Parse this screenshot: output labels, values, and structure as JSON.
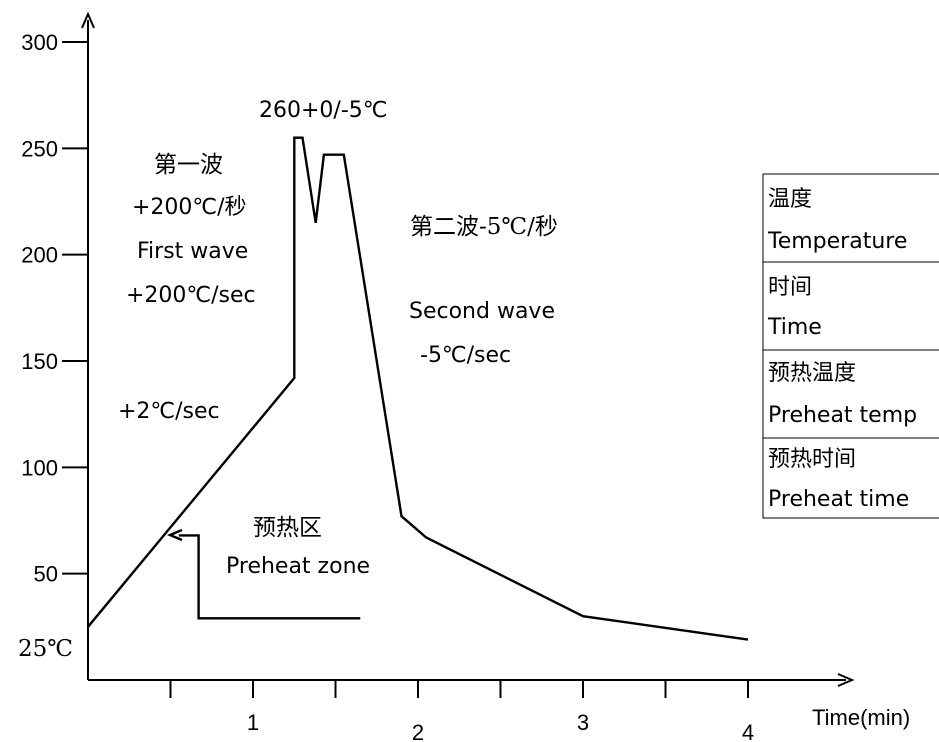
{
  "chart_data": {
    "type": "line",
    "xlabel": "Time(min)",
    "x_ticks": [
      {
        "value": 1,
        "label": "1"
      },
      {
        "value": 2,
        "label": "2"
      },
      {
        "value": 3,
        "label": "3"
      },
      {
        "value": 4,
        "label": "4"
      }
    ],
    "x_minor_ticks": [
      0.5,
      1.5,
      2.5,
      3.5
    ],
    "y_ticks": [
      {
        "value": 300,
        "label": "300"
      },
      {
        "value": 250,
        "label": "250"
      },
      {
        "value": 200,
        "label": "200"
      },
      {
        "value": 150,
        "label": "150"
      },
      {
        "value": 100,
        "label": "100"
      },
      {
        "value": 50,
        "label": "50"
      }
    ],
    "y_start_label": "25℃",
    "xlim": [
      0,
      4.6
    ],
    "ylim": [
      0,
      305
    ],
    "series": [
      {
        "points": [
          [
            0,
            25
          ],
          [
            1.25,
            142
          ],
          [
            1.25,
            255
          ],
          [
            1.3,
            255
          ],
          [
            1.38,
            215
          ],
          [
            1.43,
            247
          ],
          [
            1.55,
            247
          ],
          [
            1.9,
            77
          ],
          [
            2.05,
            67
          ],
          [
            3,
            30
          ],
          [
            4,
            19
          ]
        ]
      }
    ],
    "preheat_bracket": {
      "points": [
        [
          0.55,
          68
        ],
        [
          0.67,
          68
        ],
        [
          0.67,
          29
        ],
        [
          1.65,
          29
        ]
      ]
    },
    "annotations": {
      "peak": "260+0/-5℃",
      "first_wave_cn": "第一波",
      "first_wave_rate_cn": "+200℃/秒",
      "first_wave_en": "First wave",
      "first_wave_rate_en": "+200℃/sec",
      "second_wave_cn": "第二波-5℃/秒",
      "second_wave_en": "Second wave",
      "second_wave_rate_en": "-5℃/sec",
      "ramp_rate": "+2℃/sec",
      "preheat_zone_cn": "预热区",
      "preheat_zone_en": "Preheat zone"
    },
    "grid": false,
    "legend": "none"
  },
  "side_table": [
    {
      "cn": "温度",
      "en": "Temperature"
    },
    {
      "cn": "时间",
      "en": "Time"
    },
    {
      "cn": "预热温度",
      "en": "Preheat temp"
    },
    {
      "cn": "预热时间",
      "en": "Preheat time"
    }
  ]
}
